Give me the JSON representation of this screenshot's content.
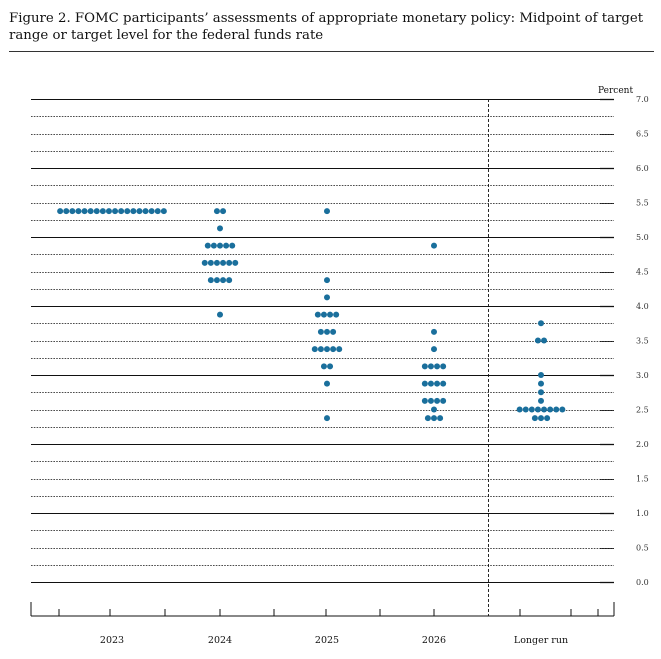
{
  "figure": {
    "title": "Figure 2.  FOMC participants’ assessments of appropriate monetary policy:  Midpoint of target range or target level for the federal funds rate"
  },
  "chart_data": {
    "type": "scatter",
    "ylabel": "Percent",
    "ylim": [
      0,
      7
    ],
    "yticks": [
      "0.0",
      "0.5",
      "1.0",
      "1.5",
      "2.0",
      "2.5",
      "3.0",
      "3.5",
      "4.0",
      "4.5",
      "5.0",
      "5.5",
      "6.0",
      "6.5",
      "7.0"
    ],
    "categories": [
      "2023",
      "2024",
      "2025",
      "2026",
      "Longer run"
    ],
    "dot_color": "#1a6f9c",
    "dots": [
      {
        "category": "2023",
        "rates": [
          {
            "value": 5.375,
            "count": 18
          }
        ]
      },
      {
        "category": "2024",
        "rates": [
          {
            "value": 5.375,
            "count": 2
          },
          {
            "value": 5.125,
            "count": 1
          },
          {
            "value": 4.875,
            "count": 5
          },
          {
            "value": 4.625,
            "count": 6
          },
          {
            "value": 4.375,
            "count": 4
          },
          {
            "value": 3.875,
            "count": 1
          }
        ]
      },
      {
        "category": "2025",
        "rates": [
          {
            "value": 5.375,
            "count": 1
          },
          {
            "value": 4.375,
            "count": 1
          },
          {
            "value": 4.125,
            "count": 1
          },
          {
            "value": 3.875,
            "count": 4
          },
          {
            "value": 3.625,
            "count": 3
          },
          {
            "value": 3.375,
            "count": 5
          },
          {
            "value": 3.125,
            "count": 2
          },
          {
            "value": 2.875,
            "count": 1
          },
          {
            "value": 2.375,
            "count": 1
          }
        ]
      },
      {
        "category": "2026",
        "rates": [
          {
            "value": 4.875,
            "count": 1
          },
          {
            "value": 3.625,
            "count": 1
          },
          {
            "value": 3.375,
            "count": 1
          },
          {
            "value": 3.125,
            "count": 4
          },
          {
            "value": 2.875,
            "count": 4
          },
          {
            "value": 2.625,
            "count": 4
          },
          {
            "value": 2.5,
            "count": 1
          },
          {
            "value": 2.375,
            "count": 3
          }
        ]
      },
      {
        "category": "Longer run",
        "rates": [
          {
            "value": 3.75,
            "count": 1
          },
          {
            "value": 3.5,
            "count": 2
          },
          {
            "value": 3.0,
            "count": 1
          },
          {
            "value": 2.875,
            "count": 1
          },
          {
            "value": 2.75,
            "count": 1
          },
          {
            "value": 2.625,
            "count": 1
          },
          {
            "value": 2.5,
            "count": 8
          },
          {
            "value": 2.375,
            "count": 3
          }
        ]
      }
    ]
  }
}
